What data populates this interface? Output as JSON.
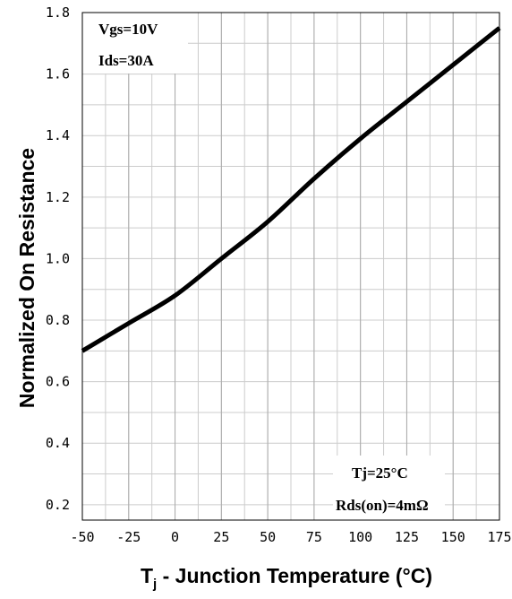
{
  "chart_data": {
    "type": "line",
    "xlabel_main": "T",
    "xlabel_sub": "j",
    "xlabel_rest": " - Junction Temperature (°C)",
    "ylabel": "Normalized On Resistance",
    "xlim": [
      -50,
      175
    ],
    "ylim": [
      0.15,
      1.8
    ],
    "x_ticks": [
      -50,
      -25,
      0,
      25,
      50,
      75,
      100,
      125,
      150,
      175
    ],
    "y_ticks": [
      0.2,
      0.4,
      0.6,
      0.8,
      1.0,
      1.2,
      1.4,
      1.6,
      1.8
    ],
    "y_tick_labels": [
      "0.2",
      "0.4",
      "0.6",
      "0.8",
      "1.0",
      "1.2",
      "1.4",
      "1.6",
      "1.8"
    ],
    "grid": true,
    "annotations": {
      "top_left": [
        "Vgs=10V",
        "Ids=30A"
      ],
      "bottom_right": [
        "Tj=25°C",
        "Rds(on)=4mΩ"
      ]
    },
    "series": [
      {
        "color": "#000000",
        "x": [
          -50,
          -25,
          0,
          25,
          50,
          75,
          100,
          125,
          150,
          175
        ],
        "y": [
          0.7,
          0.79,
          0.88,
          1.0,
          1.12,
          1.26,
          1.39,
          1.51,
          1.63,
          1.75
        ]
      }
    ]
  }
}
